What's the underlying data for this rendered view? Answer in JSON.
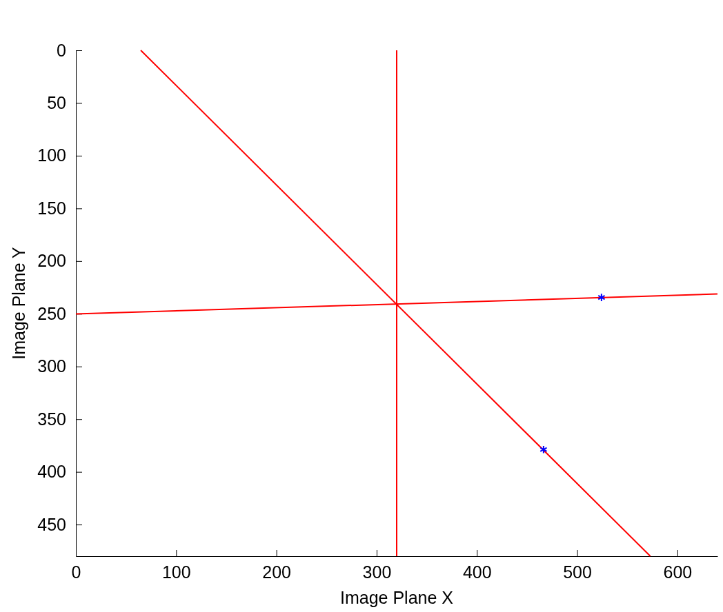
{
  "chart_data": {
    "type": "line",
    "xlabel": "Image Plane X",
    "ylabel": "Image Plane Y",
    "xlim": [
      0,
      640
    ],
    "ylim": [
      480,
      0
    ],
    "xticks": [
      0,
      100,
      200,
      300,
      400,
      500,
      600
    ],
    "yticks": [
      0,
      50,
      100,
      150,
      200,
      250,
      300,
      350,
      400,
      450
    ],
    "grid": false,
    "series": [
      {
        "color": "#ff0000",
        "x": [
          64.7,
          573
        ],
        "values": [
          0,
          480
        ],
        "marker": "none",
        "line_style": "solid"
      },
      {
        "color": "#ff0000",
        "x": [
          320,
          320
        ],
        "values": [
          0,
          480
        ],
        "marker": "none",
        "line_style": "solid"
      },
      {
        "color": "#ff0000",
        "x": [
          0,
          640
        ],
        "values": [
          250.2,
          231.2
        ],
        "marker": "none",
        "line_style": "solid"
      },
      {
        "type": "scatter",
        "color": "#0000ff",
        "x": [
          524.3,
          466.5
        ],
        "values": [
          234.5,
          378.8
        ],
        "marker": "cross"
      }
    ]
  }
}
